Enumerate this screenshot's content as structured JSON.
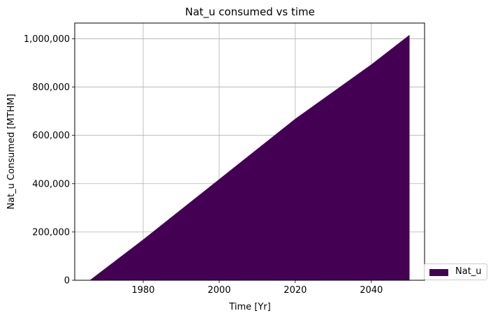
{
  "chart_data": {
    "type": "area",
    "title": "Nat_u consumed vs time",
    "xlabel": "Time [Yr]",
    "ylabel": "Nat_u Consumed [MTHM]",
    "xlim": [
      1962,
      2054
    ],
    "ylim": [
      0,
      1065000
    ],
    "xticks": [
      1980,
      2000,
      2020,
      2040
    ],
    "yticks": [
      0,
      200000,
      400000,
      600000,
      800000,
      1000000
    ],
    "ytick_labels": [
      "0",
      "200,000",
      "400,000",
      "600,000",
      "800,000",
      "1,000,000"
    ],
    "grid": true,
    "legend_position": "outside-lower-right",
    "series": [
      {
        "name": "Nat_u",
        "color": "#440154",
        "x": [
          1965,
          1966,
          1980,
          2000,
          2020,
          2040,
          2050
        ],
        "y": [
          0,
          0,
          168000,
          418000,
          668000,
          893000,
          1015000
        ]
      }
    ]
  }
}
